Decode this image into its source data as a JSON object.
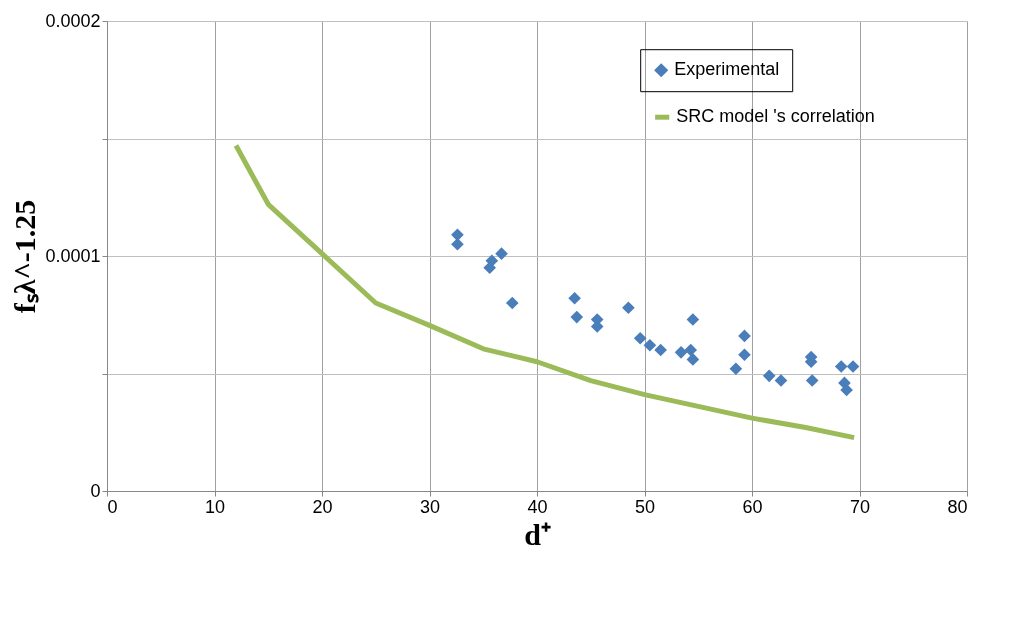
{
  "chart_data": {
    "type": "scatter",
    "xlabel": "d⁺",
    "ylabel": "fₛλ^-1.25",
    "xlim": [
      0,
      80
    ],
    "xticks": [
      0,
      10,
      20,
      30,
      40,
      50,
      60,
      70,
      80
    ],
    "ylim": [
      0,
      0.0002
    ],
    "yticks": [
      0,
      {
        "value": 5e-05,
        "label": null
      },
      0.0001,
      {
        "value": 0.00015,
        "label": null
      },
      0.0002
    ],
    "grid": true,
    "legend": "top right",
    "series": [
      {
        "name": "Experimental",
        "marker": "diamond",
        "color": "#4a7ebb",
        "x": [
          32.6,
          32.6,
          35.6,
          35.8,
          36.7,
          37.7,
          43.5,
          43.7,
          45.6,
          45.6,
          48.5,
          49.6,
          50.5,
          51.5,
          53.4,
          54.3,
          54.5,
          54.5,
          58.5,
          59.3,
          59.3,
          61.6,
          62.7,
          65.5,
          65.5,
          65.6,
          68.3,
          69.4,
          68.6,
          68.8
        ],
        "values": [
          0.000109,
          0.000105,
          9.5e-05,
          9.8e-05,
          0.000101,
          8e-05,
          8.2e-05,
          7.4e-05,
          7.3e-05,
          7e-05,
          7.8e-05,
          6.5e-05,
          6.2e-05,
          6e-05,
          5.9e-05,
          6e-05,
          5.6e-05,
          7.3e-05,
          5.2e-05,
          5.8e-05,
          6.6e-05,
          4.9e-05,
          4.7e-05,
          5.7e-05,
          5.5e-05,
          4.7e-05,
          5.3e-05,
          5.3e-05,
          4.6e-05,
          4.3e-05
        ]
      },
      {
        "name": "SRC model 's correlation",
        "type": "line",
        "line_style": "solid",
        "color": "#9bbb59",
        "x": [
          12,
          15,
          20,
          25,
          30,
          35,
          40,
          45,
          50,
          55,
          60,
          65,
          69.5
        ],
        "values": [
          0.000147,
          0.000122,
          0.000101,
          8e-05,
          7.05e-05,
          6.05e-05,
          5.5e-05,
          4.7e-05,
          4.1e-05,
          3.6e-05,
          3.1e-05,
          2.7e-05,
          2.27e-05
        ]
      }
    ]
  }
}
